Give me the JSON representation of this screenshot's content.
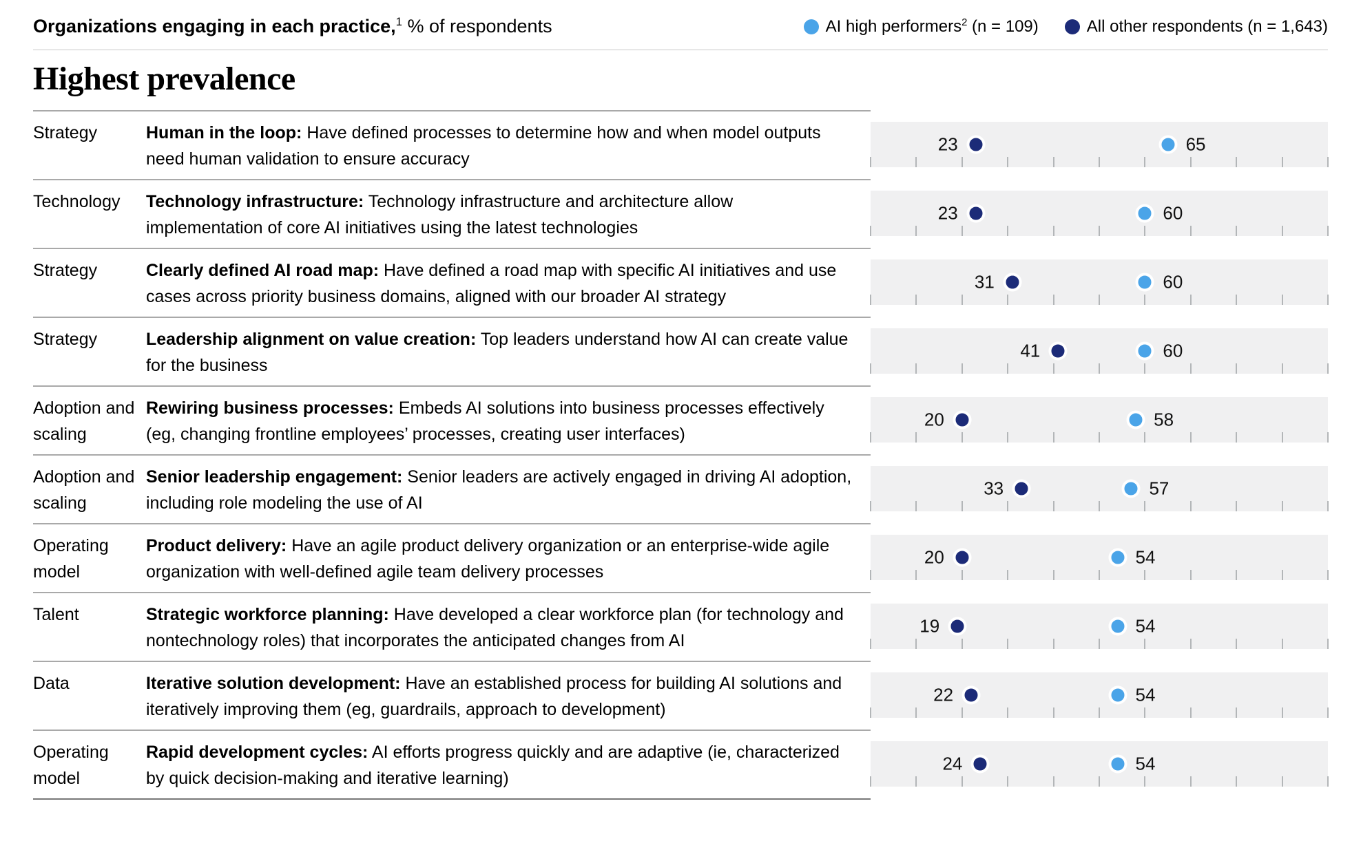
{
  "header": {
    "title_bold": "Organizations engaging in each practice,",
    "title_footnote": "1",
    "title_regular": " % of respondents"
  },
  "legend": {
    "items": [
      {
        "label": "AI high performers",
        "footnote": "2",
        "suffix": " (n = 109)"
      },
      {
        "label": "All other respondents (n = 1,643)",
        "footnote": "",
        "suffix": ""
      }
    ]
  },
  "section_title": "Highest prevalence",
  "colors": {
    "high_performers": "#4AA4E8",
    "other_respondents": "#1C2B78",
    "band": "#F0F0F1",
    "tick": "#B3B6B8"
  },
  "chart_data": {
    "type": "scatter",
    "subtype": "dot-plot",
    "title": "Organizations engaging in each practice, % of respondents",
    "section": "Highest prevalence",
    "x_axis": {
      "min": 0,
      "max": 100,
      "tick_interval": 10,
      "unit": "% of respondents",
      "gridlines": false
    },
    "legend_position": "top-right",
    "series": [
      {
        "name": "AI high performers (n = 109)",
        "color": "#4AA4E8",
        "values": [
          65,
          60,
          60,
          60,
          58,
          57,
          54,
          54,
          54,
          54
        ]
      },
      {
        "name": "All other respondents (n = 1,643)",
        "color": "#1C2B78",
        "values": [
          23,
          23,
          31,
          41,
          20,
          33,
          20,
          19,
          22,
          24
        ]
      }
    ],
    "categories": [
      "Human in the loop",
      "Technology infrastructure",
      "Clearly defined AI road map",
      "Leadership alignment on value creation",
      "Rewiring business processes",
      "Senior leadership engagement",
      "Product delivery",
      "Strategic workforce planning",
      "Iterative solution development",
      "Rapid development cycles"
    ],
    "rows": [
      {
        "category": "Strategy",
        "label": "Human in the loop:",
        "description": "Have defined processes to determine how and when model outputs need human validation to ensure accuracy",
        "other_respondents": 23,
        "high_performers": 65
      },
      {
        "category": "Technology",
        "label": "Technology infrastructure:",
        "description": "Technology infrastructure and architecture allow implementation of core AI initiatives using the latest technologies",
        "other_respondents": 23,
        "high_performers": 60
      },
      {
        "category": "Strategy",
        "label": "Clearly defined AI road map:",
        "description": "Have defined a road map with specific AI initiatives and use cases across priority business domains, aligned with our broader AI strategy",
        "other_respondents": 31,
        "high_performers": 60
      },
      {
        "category": "Strategy",
        "label": "Leadership alignment on value creation:",
        "description": "Top leaders understand how AI can create value for the business",
        "other_respondents": 41,
        "high_performers": 60
      },
      {
        "category": "Adoption and scaling",
        "label": "Rewiring business processes:",
        "description": "Embeds AI solutions into business processes effectively (eg, changing frontline employees’ processes, creating user interfaces)",
        "other_respondents": 20,
        "high_performers": 58
      },
      {
        "category": "Adoption and scaling",
        "label": "Senior leadership engagement:",
        "description": "Senior leaders are actively engaged in driving AI adoption, including role modeling the use of AI",
        "other_respondents": 33,
        "high_performers": 57
      },
      {
        "category": "Operating model",
        "label": "Product delivery:",
        "description": "Have an agile product delivery organization or an enterprise-wide agile organization with well-defined agile team delivery processes",
        "other_respondents": 20,
        "high_performers": 54
      },
      {
        "category": "Talent",
        "label": "Strategic workforce planning:",
        "description": "Have developed a clear workforce plan (for technology and nontechnology roles) that incorporates the anticipated changes from AI",
        "other_respondents": 19,
        "high_performers": 54
      },
      {
        "category": "Data",
        "label": "Iterative solution development:",
        "description": "Have an established process for building AI solutions and iteratively improving them (eg, guardrails, approach to development)",
        "other_respondents": 22,
        "high_performers": 54
      },
      {
        "category": "Operating model",
        "label": "Rapid development cycles:",
        "description": "AI efforts progress quickly and are adaptive (ie, characterized by quick decision-making and iterative learning)",
        "other_respondents": 24,
        "high_performers": 54
      }
    ]
  }
}
